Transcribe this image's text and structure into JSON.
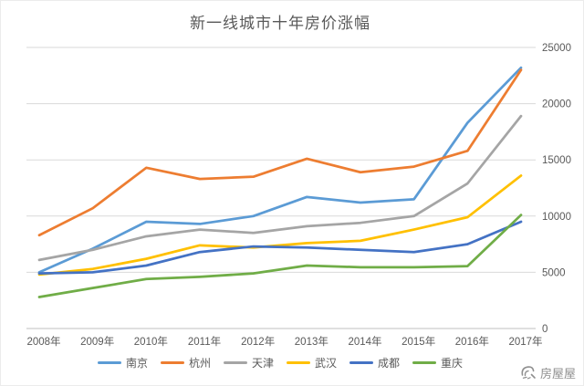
{
  "title": "新一线城市十年房价涨幅",
  "watermark": {
    "label": "房屋屋"
  },
  "chart_data": {
    "type": "line",
    "title": "新一线城市十年房价涨幅",
    "categories": [
      "2008年",
      "2009年",
      "2010年",
      "2011年",
      "2012年",
      "2013年",
      "2014年",
      "2015年",
      "2016年",
      "2017年"
    ],
    "series": [
      {
        "name": "南京",
        "color": "#5B9BD5",
        "values": [
          5000,
          7100,
          9500,
          9300,
          10000,
          11700,
          11200,
          11500,
          18300,
          23200
        ]
      },
      {
        "name": "杭州",
        "color": "#ED7D31",
        "values": [
          8300,
          10700,
          14300,
          13300,
          13500,
          15100,
          13900,
          14400,
          15800,
          23000
        ]
      },
      {
        "name": "天津",
        "color": "#A5A5A5",
        "values": [
          6100,
          7000,
          8200,
          8800,
          8500,
          9100,
          9400,
          10000,
          12900,
          18900
        ]
      },
      {
        "name": "武汉",
        "color": "#FFC000",
        "values": [
          4800,
          5300,
          6200,
          7400,
          7200,
          7600,
          7800,
          8800,
          9900,
          13600
        ]
      },
      {
        "name": "成都",
        "color": "#4472C4",
        "values": [
          4900,
          5000,
          5600,
          6800,
          7300,
          7200,
          7000,
          6800,
          7500,
          9500
        ]
      },
      {
        "name": "重庆",
        "color": "#70AD47",
        "values": [
          2800,
          3600,
          4400,
          4600,
          4900,
          5600,
          5450,
          5450,
          5550,
          10100
        ]
      }
    ],
    "ylim": [
      0,
      25000
    ],
    "yticks": [
      0,
      5000,
      10000,
      15000,
      20000,
      25000
    ],
    "grid": true,
    "legend_position": "bottom",
    "y_axis_side": "right",
    "colors": {
      "gridline": "#D9D9D9",
      "axis_line": "#BFBFBF",
      "tick_label": "#595959",
      "title": "#595959"
    }
  }
}
